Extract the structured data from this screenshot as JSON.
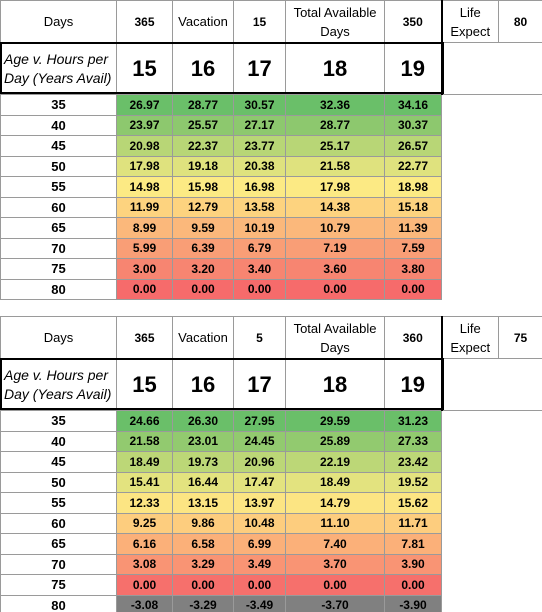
{
  "tables": [
    {
      "header": {
        "days_label": "Days",
        "days_value": "365",
        "vacation_label": "Vacation",
        "vacation_value": "15",
        "total_label": "Total Available Days",
        "total_value": "350",
        "life_label": "Life Expect",
        "life_value": "80"
      },
      "corner_label": "Age v. Hours per Day (Years Avail)",
      "hours": [
        "15",
        "16",
        "17",
        "18",
        "19"
      ],
      "rows": [
        {
          "age": "35",
          "values": [
            "26.97",
            "28.77",
            "30.57",
            "32.36",
            "34.16"
          ]
        },
        {
          "age": "40",
          "values": [
            "23.97",
            "25.57",
            "27.17",
            "28.77",
            "30.37"
          ]
        },
        {
          "age": "45",
          "values": [
            "20.98",
            "22.37",
            "23.77",
            "25.17",
            "26.57"
          ]
        },
        {
          "age": "50",
          "values": [
            "17.98",
            "19.18",
            "20.38",
            "21.58",
            "22.77"
          ]
        },
        {
          "age": "55",
          "values": [
            "14.98",
            "15.98",
            "16.98",
            "17.98",
            "18.98"
          ]
        },
        {
          "age": "60",
          "values": [
            "11.99",
            "12.79",
            "13.58",
            "14.38",
            "15.18"
          ]
        },
        {
          "age": "65",
          "values": [
            "8.99",
            "9.59",
            "10.19",
            "10.79",
            "11.39"
          ]
        },
        {
          "age": "70",
          "values": [
            "5.99",
            "6.39",
            "6.79",
            "7.19",
            "7.59"
          ]
        },
        {
          "age": "75",
          "values": [
            "3.00",
            "3.20",
            "3.40",
            "3.60",
            "3.80"
          ]
        },
        {
          "age": "80",
          "values": [
            "0.00",
            "0.00",
            "0.00",
            "0.00",
            "0.00"
          ]
        }
      ],
      "row_colors": [
        "#6abf69",
        "#8dc86e",
        "#b8d676",
        "#dfe27e",
        "#fcea84",
        "#fdd37f",
        "#fbb87b",
        "#f99e76",
        "#f78571",
        "#f66b6b"
      ]
    },
    {
      "header": {
        "days_label": "Days",
        "days_value": "365",
        "vacation_label": "Vacation",
        "vacation_value": "5",
        "total_label": "Total Available Days",
        "total_value": "360",
        "life_label": "Life Expect",
        "life_value": "75"
      },
      "corner_label": "Age v. Hours per Day (Years Avail)",
      "hours": [
        "15",
        "16",
        "17",
        "18",
        "19"
      ],
      "rows": [
        {
          "age": "35",
          "values": [
            "24.66",
            "26.30",
            "27.95",
            "29.59",
            "31.23"
          ]
        },
        {
          "age": "40",
          "values": [
            "21.58",
            "23.01",
            "24.45",
            "25.89",
            "27.33"
          ]
        },
        {
          "age": "45",
          "values": [
            "18.49",
            "19.73",
            "20.96",
            "22.19",
            "23.42"
          ]
        },
        {
          "age": "50",
          "values": [
            "15.41",
            "16.44",
            "17.47",
            "18.49",
            "19.52"
          ]
        },
        {
          "age": "55",
          "values": [
            "12.33",
            "13.15",
            "13.97",
            "14.79",
            "15.62"
          ]
        },
        {
          "age": "60",
          "values": [
            "9.25",
            "9.86",
            "10.48",
            "11.10",
            "11.71"
          ]
        },
        {
          "age": "65",
          "values": [
            "6.16",
            "6.58",
            "6.99",
            "7.40",
            "7.81"
          ]
        },
        {
          "age": "70",
          "values": [
            "3.08",
            "3.29",
            "3.49",
            "3.70",
            "3.90"
          ]
        },
        {
          "age": "75",
          "values": [
            "0.00",
            "0.00",
            "0.00",
            "0.00",
            "0.00"
          ]
        },
        {
          "age": "80",
          "values": [
            "-3.08",
            "-3.29",
            "-3.49",
            "-3.70",
            "-3.90"
          ]
        }
      ],
      "row_colors": [
        "#6abf69",
        "#92ca6f",
        "#bcd777",
        "#e3e37f",
        "#fce583",
        "#fdcd7e",
        "#fbb079",
        "#f99474",
        "#f6706c",
        "#808080"
      ]
    }
  ]
}
